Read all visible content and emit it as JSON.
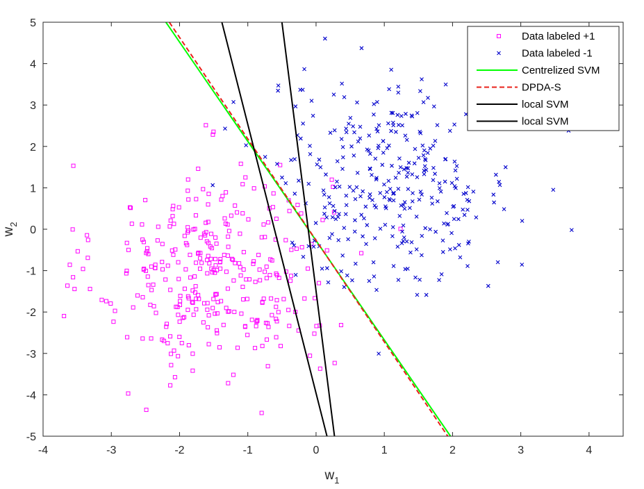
{
  "chart_data": {
    "type": "scatter",
    "xlim": [
      -4,
      4.5
    ],
    "ylim": [
      -5,
      5
    ],
    "xticks": [
      "-4",
      "-3",
      "-2",
      "-1",
      "0",
      "1",
      "2",
      "3",
      "4"
    ],
    "yticks": [
      "-5",
      "-4",
      "-3",
      "-2",
      "-1",
      "0",
      "1",
      "2",
      "3",
      "4",
      "5"
    ],
    "xlabel_main": "w",
    "xlabel_sub": "1",
    "ylabel_main": "w",
    "ylabel_sub": "2",
    "grid": false,
    "legend_position": "top-right",
    "colors": {
      "pos": "#ff00ff",
      "neg": "#0000cc",
      "central": "#00ff00",
      "dpda": "#e8201a",
      "local": "#000000"
    },
    "scatter_series": [
      {
        "name": "Data labeled +1",
        "marker": "square",
        "color": "#ff00ff",
        "center": [
          -1.5,
          -1.0
        ],
        "spread": [
          0.85,
          1.3
        ],
        "count": 330
      },
      {
        "name": "Data labeled  -1",
        "marker": "x",
        "color": "#0000cc",
        "center": [
          1.1,
          1.1
        ],
        "spread": [
          0.9,
          1.25
        ],
        "count": 330
      }
    ],
    "line_series": [
      {
        "name": "Centrelized SVM",
        "style": "solid",
        "color": "#00ff00",
        "points": [
          [
            -2.2,
            5
          ],
          [
            1.97,
            -5
          ]
        ]
      },
      {
        "name": "DPDA-S",
        "style": "dashed",
        "color": "#e8201a",
        "points": [
          [
            -2.15,
            5
          ],
          [
            1.93,
            -5
          ]
        ]
      },
      {
        "name": "local SVM",
        "style": "solid",
        "color": "#000000",
        "points": [
          [
            -1.38,
            5
          ],
          [
            0.16,
            -5
          ]
        ]
      },
      {
        "name": "local SVM",
        "style": "solid",
        "color": "#000000",
        "points": [
          [
            -0.5,
            5
          ],
          [
            0.27,
            -5
          ]
        ]
      }
    ]
  }
}
